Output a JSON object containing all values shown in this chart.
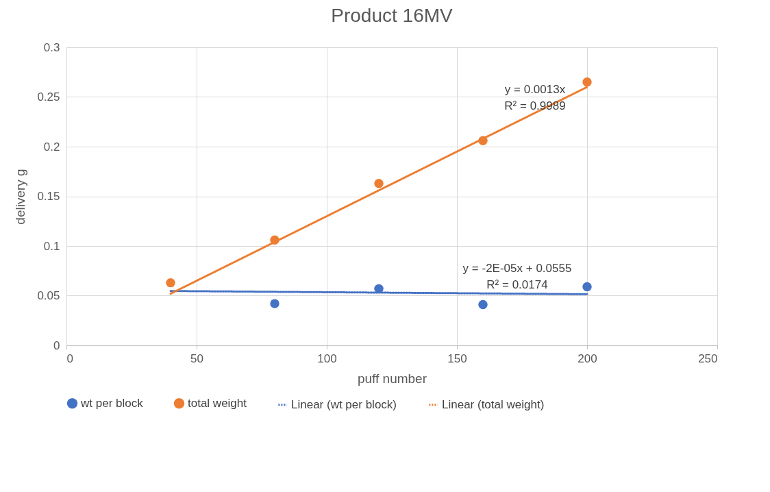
{
  "chart_data": {
    "type": "scatter",
    "title": "Product 16MV",
    "xlabel": "puff number",
    "ylabel": "delivery g",
    "xlim": [
      0,
      250
    ],
    "xticks": [
      0,
      50,
      100,
      150,
      200,
      250
    ],
    "ylim": [
      0,
      0.3
    ],
    "yticks": [
      0,
      0.05,
      0.1,
      0.15,
      0.2,
      0.25,
      0.3
    ],
    "grid": true,
    "legend": "bottom",
    "marker": "circle",
    "series": [
      {
        "name": "wt per block",
        "color": "#4472c4",
        "x": [
          80,
          120,
          160,
          200
        ],
        "values": [
          0.042,
          0.057,
          0.041,
          0.059
        ]
      },
      {
        "name": "total weight",
        "color": "#ed7d31",
        "x": [
          40,
          80,
          120,
          160,
          200
        ],
        "values": [
          0.063,
          0.106,
          0.163,
          0.206,
          0.265
        ]
      },
      {
        "name": "Linear (wt per block)",
        "type": "line",
        "line_style": "dotted",
        "marker": "none",
        "color": "#4472c4",
        "x": [
          40,
          200
        ],
        "values": [
          0.0547,
          0.0515
        ]
      },
      {
        "name": "Linear (total weight)",
        "type": "line",
        "line_style": "dotted",
        "marker": "none",
        "color": "#ed7d31",
        "x": [
          40,
          200
        ],
        "values": [
          0.052,
          0.26
        ]
      }
    ],
    "annotations": [
      "y = 0.0013x\nR² = 0.9989",
      "y = -2E-05x + 0.0555\nR² = 0.0174"
    ]
  }
}
